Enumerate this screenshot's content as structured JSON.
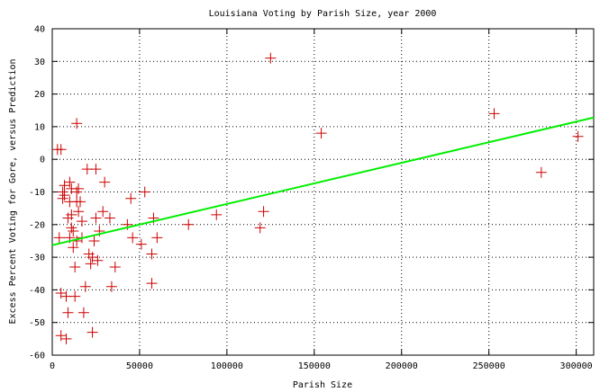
{
  "chart_data": {
    "type": "scatter",
    "title": "Louisiana Voting by Parish Size, year 2000",
    "xlabel": "Parish Size",
    "ylabel": "Excess Percent Voting for Gore, versus Prediction",
    "xlim": [
      0,
      310000
    ],
    "ylim": [
      -60,
      40
    ],
    "xticks": [
      0,
      50000,
      100000,
      150000,
      200000,
      250000,
      300000
    ],
    "yticks": [
      -60,
      -50,
      -40,
      -30,
      -20,
      -10,
      0,
      10,
      20,
      30,
      40
    ],
    "grid": true,
    "colors": {
      "points": "#cc0000",
      "fit_line": "#00ee00",
      "grid": "#000000"
    },
    "series": [
      {
        "kind": "points",
        "marker": "plus",
        "points": [
          [
            3000,
            3
          ],
          [
            5000,
            3
          ],
          [
            4000,
            -24
          ],
          [
            5000,
            -41
          ],
          [
            5000,
            -54
          ],
          [
            6000,
            -10
          ],
          [
            6000,
            -12
          ],
          [
            7000,
            -8
          ],
          [
            7000,
            -11
          ],
          [
            8000,
            -55
          ],
          [
            8000,
            -42
          ],
          [
            9000,
            -18
          ],
          [
            9000,
            -47
          ],
          [
            10000,
            -7
          ],
          [
            10000,
            -13
          ],
          [
            10000,
            -24
          ],
          [
            11000,
            -9
          ],
          [
            11000,
            -17
          ],
          [
            11000,
            -21
          ],
          [
            12000,
            -22
          ],
          [
            12000,
            -27
          ],
          [
            13000,
            -33
          ],
          [
            13000,
            -42
          ],
          [
            14000,
            11
          ],
          [
            14000,
            -10
          ],
          [
            14000,
            -13
          ],
          [
            14000,
            -25
          ],
          [
            15000,
            -9
          ],
          [
            15000,
            -16
          ],
          [
            16000,
            -13
          ],
          [
            17000,
            -19
          ],
          [
            17000,
            -24
          ],
          [
            18000,
            -47
          ],
          [
            19000,
            -39
          ],
          [
            20000,
            -3
          ],
          [
            21000,
            -29
          ],
          [
            22000,
            -32
          ],
          [
            23000,
            -30
          ],
          [
            23000,
            -53
          ],
          [
            24000,
            -25
          ],
          [
            25000,
            -3
          ],
          [
            25000,
            -18
          ],
          [
            26000,
            -31
          ],
          [
            27000,
            -22
          ],
          [
            29000,
            -16
          ],
          [
            30000,
            -7
          ],
          [
            33000,
            -18
          ],
          [
            34000,
            -39
          ],
          [
            36000,
            -33
          ],
          [
            43000,
            -20
          ],
          [
            45000,
            -12
          ],
          [
            46000,
            -24
          ],
          [
            51000,
            -26
          ],
          [
            53000,
            -10
          ],
          [
            57000,
            -38
          ],
          [
            57000,
            -29
          ],
          [
            58000,
            -18
          ],
          [
            60000,
            -24
          ],
          [
            78000,
            -20
          ],
          [
            94000,
            -17
          ],
          [
            119000,
            -21
          ],
          [
            121000,
            -16
          ],
          [
            125000,
            31
          ],
          [
            154000,
            8
          ],
          [
            253000,
            14
          ],
          [
            280000,
            -4
          ],
          [
            301000,
            7
          ]
        ]
      },
      {
        "kind": "fit_line",
        "x": [
          0,
          310000
        ],
        "y": [
          -26.3,
          12.8
        ]
      }
    ]
  }
}
